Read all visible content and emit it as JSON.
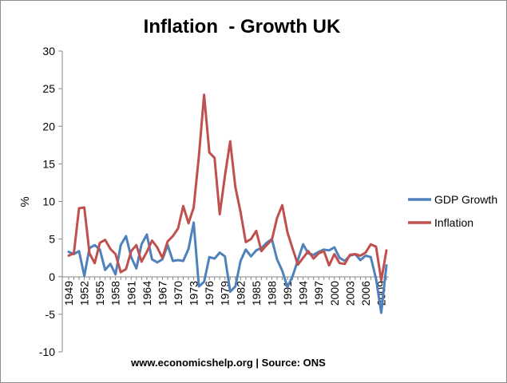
{
  "chart_data": {
    "type": "line",
    "title": "Inflation  - Growth UK",
    "xlabel": "",
    "ylabel": "%",
    "footer": "www.economicshelp.org | Source: ONS",
    "ylim": [
      -10,
      30
    ],
    "yticks": [
      30,
      25,
      20,
      15,
      10,
      5,
      0,
      -5,
      -10
    ],
    "grid": false,
    "legend_position": "right",
    "x": [
      1949,
      1950,
      1951,
      1952,
      1953,
      1954,
      1955,
      1956,
      1957,
      1958,
      1959,
      1960,
      1961,
      1962,
      1963,
      1964,
      1965,
      1966,
      1967,
      1968,
      1969,
      1970,
      1971,
      1972,
      1973,
      1974,
      1975,
      1976,
      1977,
      1978,
      1979,
      1980,
      1981,
      1982,
      1983,
      1984,
      1985,
      1986,
      1987,
      1988,
      1989,
      1990,
      1991,
      1992,
      1993,
      1994,
      1995,
      1996,
      1997,
      1998,
      1999,
      2000,
      2001,
      2002,
      2003,
      2004,
      2005,
      2006,
      2007,
      2008,
      2009,
      2010
    ],
    "xtick_labels": [
      "1949",
      "1952",
      "1955",
      "1958",
      "1961",
      "1964",
      "1967",
      "1970",
      "1973",
      "1976",
      "1979",
      "1982",
      "1985",
      "1988",
      "1991",
      "1994",
      "1997",
      "2000",
      "2003",
      "2006",
      "2009"
    ],
    "series": [
      {
        "name": "GDP Growth",
        "color": "#4f81bd",
        "values": [
          3.3,
          3.0,
          3.4,
          0.1,
          3.8,
          4.2,
          3.6,
          0.9,
          1.7,
          0.3,
          4.2,
          5.4,
          2.6,
          1.1,
          4.3,
          5.6,
          2.3,
          1.9,
          2.3,
          4.2,
          2.1,
          2.2,
          2.1,
          3.7,
          7.2,
          -1.3,
          -0.7,
          2.6,
          2.4,
          3.2,
          2.7,
          -2.0,
          -1.3,
          2.1,
          3.6,
          2.7,
          3.5,
          3.8,
          4.5,
          5.0,
          2.3,
          0.8,
          -1.4,
          0.1,
          2.2,
          4.3,
          3.1,
          2.9,
          3.3,
          3.6,
          3.5,
          3.9,
          2.5,
          2.1,
          2.8,
          3.0,
          2.2,
          2.8,
          2.6,
          -0.3,
          -4.8,
          1.5
        ]
      },
      {
        "name": "Inflation",
        "color": "#c0504d",
        "values": [
          2.8,
          3.1,
          9.1,
          9.2,
          3.1,
          1.8,
          4.5,
          4.9,
          3.7,
          3.0,
          0.6,
          1.0,
          3.4,
          4.2,
          2.0,
          3.3,
          4.8,
          3.9,
          2.5,
          4.7,
          5.4,
          6.4,
          9.4,
          7.1,
          9.2,
          16.0,
          24.2,
          16.5,
          15.8,
          8.3,
          13.4,
          18.0,
          11.9,
          8.6,
          4.6,
          5.0,
          6.1,
          3.4,
          4.2,
          4.9,
          7.8,
          9.5,
          5.9,
          3.7,
          1.6,
          2.5,
          3.4,
          2.4,
          3.1,
          3.4,
          1.5,
          3.0,
          1.8,
          1.7,
          2.9,
          3.0,
          2.8,
          3.2,
          4.3,
          4.0,
          -0.5,
          3.5
        ]
      }
    ]
  }
}
